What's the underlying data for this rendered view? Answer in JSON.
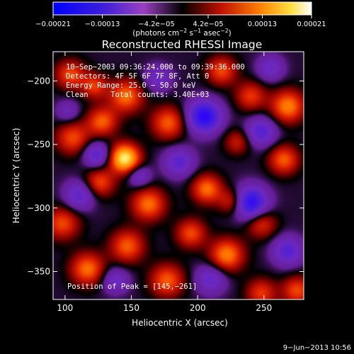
{
  "chart_data": {
    "type": "heatmap",
    "title": "Reconstructed RHESSI Image",
    "xlabel": "Heliocentric X (arcsec)",
    "ylabel": "Heliocentric Y (arcsec)",
    "xlim": [
      91,
      280
    ],
    "ylim": [
      -372,
      -177
    ],
    "x_ticks": [
      100,
      150,
      200,
      250
    ],
    "x_tick_labels": [
      "100",
      "150",
      "200",
      "250"
    ],
    "y_ticks": [
      -200,
      -250,
      -300,
      -350
    ],
    "y_tick_labels": [
      "−200",
      "−250",
      "−300",
      "−350"
    ],
    "colorbar": {
      "range": [
        -0.00021,
        0.00021
      ],
      "ticks": [
        -0.00021,
        -0.00013,
        -4.2e-05,
        4.2e-05,
        0.00013,
        0.00021
      ],
      "tick_labels": [
        "−0.00021",
        "−0.00013",
        "−4.2e−05",
        "4.2e−05",
        "0.00013",
        "0.00021"
      ],
      "label_main": "(photons cm",
      "label_sup1": "−2",
      "label_mid": " s",
      "label_sup2": "−1",
      "label_mid2": " asec",
      "label_sup3": "−2",
      "label_end": ")"
    },
    "annotations": [
      "10−Sep−2003 09:36:24.000 to 09:39:36.000",
      "Detectors: 4F 5F 6F 7F 8F, Att 0",
      "Energy Range: 25.0 − 50.0 keV",
      "Clean     Total counts: 3.40E+03"
    ],
    "peak_label": "Position of Peak = [145,−261]",
    "peak": [
      145,
      -261
    ],
    "blobs": [
      {
        "x": 145,
        "y": -261,
        "v": 1.0,
        "s": 8
      },
      {
        "x": 146,
        "y": -212,
        "v": 0.6,
        "s": 9
      },
      {
        "x": 128,
        "y": -232,
        "v": 0.55,
        "s": 8
      },
      {
        "x": 106,
        "y": -245,
        "v": 0.5,
        "s": 9
      },
      {
        "x": 104,
        "y": -195,
        "v": 0.5,
        "s": 8
      },
      {
        "x": 122,
        "y": -204,
        "v": 0.45,
        "s": 7
      },
      {
        "x": 178,
        "y": -233,
        "v": 0.55,
        "s": 9
      },
      {
        "x": 218,
        "y": -192,
        "v": 0.5,
        "s": 8
      },
      {
        "x": 240,
        "y": -212,
        "v": 0.45,
        "s": 8
      },
      {
        "x": 268,
        "y": -220,
        "v": 0.65,
        "s": 9
      },
      {
        "x": 265,
        "y": -262,
        "v": 0.55,
        "s": 8
      },
      {
        "x": 230,
        "y": -248,
        "v": 0.35,
        "s": 7
      },
      {
        "x": 163,
        "y": -297,
        "v": 0.6,
        "s": 9
      },
      {
        "x": 207,
        "y": -285,
        "v": 0.6,
        "s": 8
      },
      {
        "x": 226,
        "y": -295,
        "v": 0.45,
        "s": 7
      },
      {
        "x": 126,
        "y": -280,
        "v": 0.5,
        "s": 8
      },
      {
        "x": 98,
        "y": -312,
        "v": 0.5,
        "s": 9
      },
      {
        "x": 117,
        "y": -348,
        "v": 0.6,
        "s": 9
      },
      {
        "x": 147,
        "y": -330,
        "v": 0.55,
        "s": 9
      },
      {
        "x": 177,
        "y": -357,
        "v": 0.55,
        "s": 9
      },
      {
        "x": 195,
        "y": -320,
        "v": 0.5,
        "s": 8
      },
      {
        "x": 222,
        "y": -337,
        "v": 0.65,
        "s": 9
      },
      {
        "x": 248,
        "y": -312,
        "v": 0.45,
        "s": 8
      },
      {
        "x": 248,
        "y": -367,
        "v": 0.45,
        "s": 8
      },
      {
        "x": 275,
        "y": -365,
        "v": 0.5,
        "s": 8
      },
      {
        "x": 205,
        "y": -228,
        "v": -0.9,
        "s": 9
      },
      {
        "x": 248,
        "y": -240,
        "v": -0.55,
        "s": 8
      },
      {
        "x": 124,
        "y": -258,
        "v": -0.55,
        "s": 7
      },
      {
        "x": 111,
        "y": -290,
        "v": -0.5,
        "s": 8
      },
      {
        "x": 240,
        "y": -296,
        "v": -0.9,
        "s": 9
      },
      {
        "x": 268,
        "y": -334,
        "v": -0.55,
        "s": 8
      },
      {
        "x": 210,
        "y": -356,
        "v": -0.45,
        "s": 8
      },
      {
        "x": 156,
        "y": -275,
        "v": -0.4,
        "s": 6
      },
      {
        "x": 170,
        "y": -198,
        "v": -0.4,
        "s": 7
      },
      {
        "x": 255,
        "y": -190,
        "v": -0.4,
        "s": 7
      },
      {
        "x": 138,
        "y": -357,
        "v": -0.4,
        "s": 7
      },
      {
        "x": 186,
        "y": -264,
        "v": -0.5,
        "s": 8
      },
      {
        "x": 102,
        "y": -224,
        "v": -0.3,
        "s": 6
      }
    ]
  },
  "footer": {
    "date_stamp": "9−Jun−2013 10:56"
  }
}
